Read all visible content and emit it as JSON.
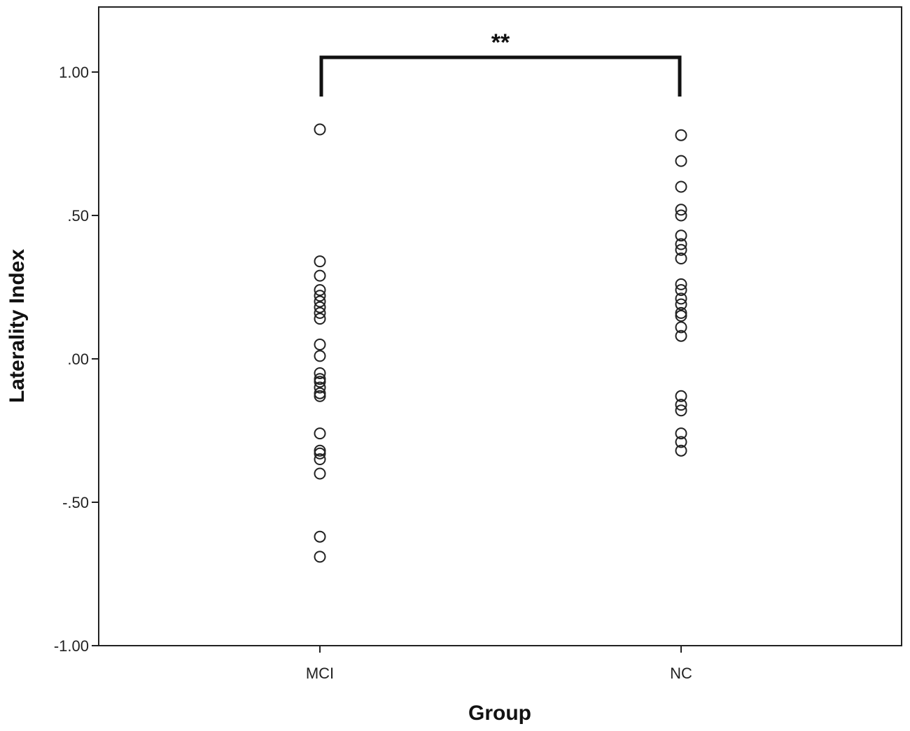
{
  "chart_data": {
    "type": "scatter",
    "xlabel": "Group",
    "ylabel": "Laterality Index",
    "ylim": [
      -1.0,
      1.2
    ],
    "yticks": [
      {
        "value": 1.0,
        "label": "1.00"
      },
      {
        "value": 0.5,
        "label": ".50"
      },
      {
        "value": 0.0,
        "label": ".00"
      },
      {
        "value": -0.5,
        "label": "-.50"
      },
      {
        "value": -1.0,
        "label": "-1.00"
      }
    ],
    "categories": [
      "MCI",
      "NC"
    ],
    "grid": false,
    "marker": "hollow-circle",
    "marker_color": "#222222",
    "series": [
      {
        "values": [
          [
            0.8,
            0.34,
            0.29,
            0.24,
            0.22,
            0.2,
            0.18,
            0.16,
            0.14,
            0.05,
            0.01,
            -0.05,
            -0.07,
            -0.08,
            -0.1,
            -0.12,
            -0.13,
            -0.26,
            -0.32,
            -0.33,
            -0.35,
            -0.4,
            -0.62,
            -0.69
          ],
          [
            0.78,
            0.69,
            0.6,
            0.52,
            0.5,
            0.43,
            0.4,
            0.38,
            0.35,
            0.26,
            0.24,
            0.21,
            0.19,
            0.16,
            0.15,
            0.11,
            0.08,
            -0.13,
            -0.16,
            -0.18,
            -0.26,
            -0.29,
            -0.32
          ]
        ]
      }
    ],
    "annotation": {
      "type": "significance-bracket",
      "from": "MCI",
      "to": "NC",
      "label": "**"
    }
  }
}
